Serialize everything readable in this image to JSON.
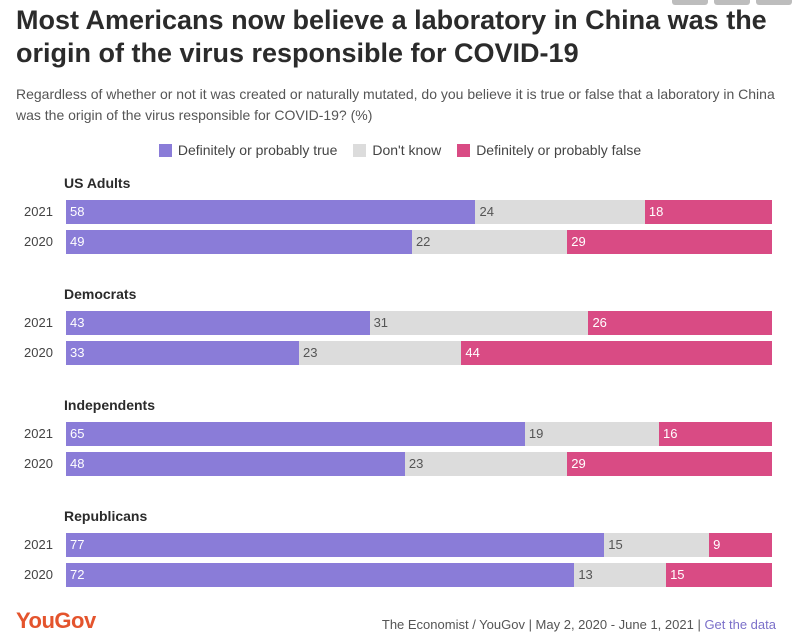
{
  "title": "Most Americans now believe a laboratory in China was the origin of the virus responsible for COVID-19",
  "subtitle": "Regardless of whether or not it was created or naturally mutated, do you believe it is true or false that a laboratory in China was the origin of the virus responsible for COVID-19? (%)",
  "colors": {
    "true": "#8a7cd8",
    "dont_know": "#dcdcdc",
    "false": "#d94b84"
  },
  "legend": [
    {
      "key": "true",
      "label": "Definitely or probably true"
    },
    {
      "key": "dont_know",
      "label": "Don't know"
    },
    {
      "key": "false",
      "label": "Definitely or probably false"
    }
  ],
  "chart_data": {
    "type": "bar",
    "orientation": "horizontal",
    "stacked": true,
    "unit": "%",
    "series_names": [
      "Definitely or probably true",
      "Don't know",
      "Definitely or probably false"
    ],
    "groups": [
      {
        "name": "US Adults",
        "rows": [
          {
            "year": "2021",
            "values": [
              58,
              24,
              18
            ]
          },
          {
            "year": "2020",
            "values": [
              49,
              22,
              29
            ]
          }
        ]
      },
      {
        "name": "Democrats",
        "rows": [
          {
            "year": "2021",
            "values": [
              43,
              31,
              26
            ]
          },
          {
            "year": "2020",
            "values": [
              33,
              23,
              44
            ]
          }
        ]
      },
      {
        "name": "Independents",
        "rows": [
          {
            "year": "2021",
            "values": [
              65,
              19,
              16
            ]
          },
          {
            "year": "2020",
            "values": [
              48,
              23,
              29
            ]
          }
        ]
      },
      {
        "name": "Republicans",
        "rows": [
          {
            "year": "2021",
            "values": [
              77,
              15,
              9
            ]
          },
          {
            "year": "2020",
            "values": [
              72,
              13,
              15
            ]
          }
        ]
      }
    ]
  },
  "footer": {
    "logo": "YouGov",
    "source": "The Economist / YouGov | May 2, 2020 - June 1, 2021 | ",
    "link": "Get the data"
  }
}
